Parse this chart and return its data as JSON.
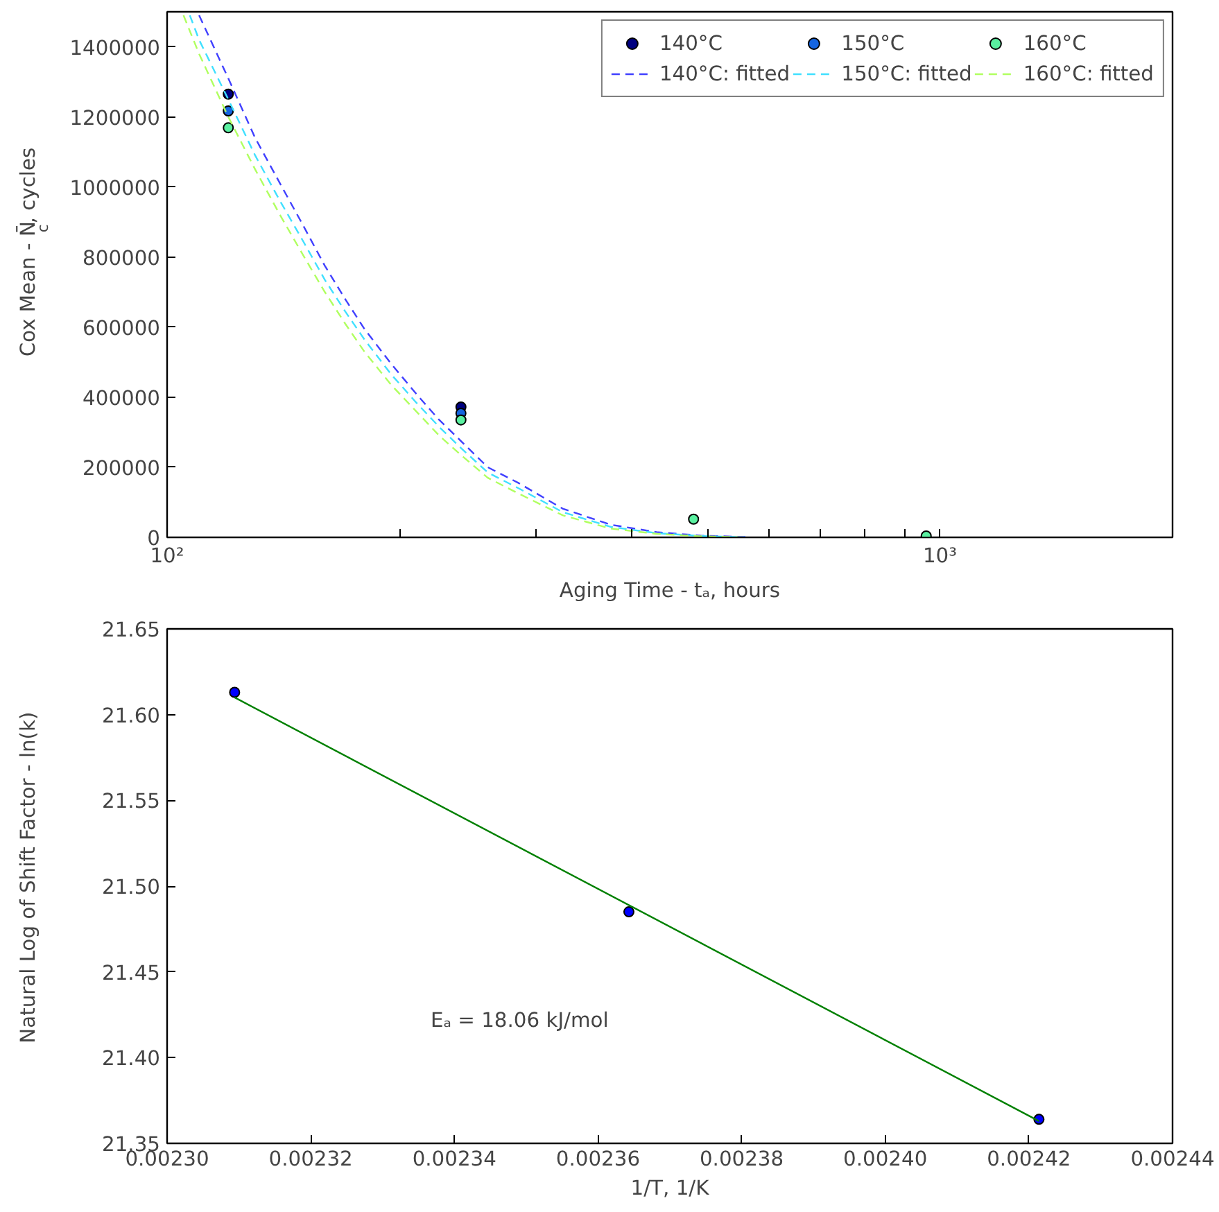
{
  "chart_data": [
    {
      "type": "scatter",
      "xlabel": "Aging Time - tₐ, hours",
      "ylabel": "Cox Mean - N̄$_{c}$, cycles",
      "log": "x",
      "legend": "top right",
      "marker": "circle",
      "grid": false,
      "xlim": [
        100,
        2000
      ],
      "xticks": [
        {
          "value": 100,
          "label": "10²"
        },
        {
          "value": 200,
          "label": null
        },
        {
          "value": 300,
          "label": null
        },
        {
          "value": 400,
          "label": null
        },
        {
          "value": 500,
          "label": null
        },
        {
          "value": 600,
          "label": null
        },
        {
          "value": 700,
          "label": null
        },
        {
          "value": 800,
          "label": null
        },
        {
          "value": 900,
          "label": null
        },
        {
          "value": 1000,
          "label": "10³"
        },
        {
          "value": 2000,
          "label": null
        }
      ],
      "ylim": [
        0,
        1500000
      ],
      "yticks": [
        0,
        200000,
        400000,
        600000,
        800000,
        1000000,
        1200000,
        1400000
      ],
      "series": [
        {
          "name": "140°C",
          "color": "#000080",
          "x": [
            120,
            240
          ],
          "values": [
            1265000,
            372000
          ]
        },
        {
          "name": "150°C",
          "color": "#1565e0",
          "x": [
            120,
            240
          ],
          "values": [
            1217000,
            354000
          ]
        },
        {
          "name": "160°C",
          "color": "#5af0a0",
          "x": [
            120,
            240,
            480,
            960
          ],
          "values": [
            1169000,
            335000,
            52000,
            4000
          ]
        },
        {
          "name": "140°C: fitted",
          "type": "line",
          "line_style": "dashed",
          "marker": "none",
          "color": "#4040ff",
          "x": [
            110,
            120,
            130,
            140,
            150,
            160,
            170,
            180,
            195,
            210,
            225,
            240,
            260,
            285,
            325,
            375,
            430,
            490,
            560
          ],
          "values": [
            1490000,
            1310000,
            1140000,
            1010000,
            890000,
            775000,
            680000,
            595000,
            495000,
            410000,
            335000,
            275000,
            200000,
            155000,
            82000,
            36000,
            15000,
            5000,
            1000
          ]
        },
        {
          "name": "150°C: fitted",
          "type": "line",
          "line_style": "dashed",
          "marker": "none",
          "color": "#40e0ff",
          "x": [
            107,
            110,
            120,
            130,
            140,
            150,
            160,
            170,
            180,
            195,
            210,
            225,
            240,
            260,
            285,
            325,
            375,
            430,
            490,
            560
          ],
          "values": [
            1490000,
            1420000,
            1250000,
            1090000,
            960000,
            845000,
            735000,
            645000,
            565000,
            465000,
            385000,
            315000,
            255000,
            185000,
            140000,
            72000,
            30000,
            12000,
            4000,
            0
          ]
        },
        {
          "name": "160°C: fitted",
          "type": "line",
          "line_style": "dashed",
          "marker": "none",
          "color": "#b0ff60",
          "x": [
            105,
            110,
            120,
            130,
            140,
            150,
            160,
            170,
            180,
            195,
            210,
            225,
            240,
            260,
            285,
            325,
            375,
            430,
            490,
            560
          ],
          "values": [
            1490000,
            1380000,
            1200000,
            1050000,
            920000,
            805000,
            700000,
            610000,
            530000,
            435000,
            360000,
            290000,
            235000,
            170000,
            125000,
            63000,
            25000,
            10000,
            3000,
            0
          ]
        }
      ]
    },
    {
      "type": "scatter",
      "xlabel": "1/T, 1/K",
      "ylabel": "Natural Log of Shift Factor - ln(k)",
      "marker": "circle",
      "grid": false,
      "annotations": [
        "Eₐ = 18.06 kJ/mol"
      ],
      "xlim": [
        0.0023,
        0.00244
      ],
      "xticks": [
        {
          "value": 0.0023,
          "label": "0.00230"
        },
        {
          "value": 0.00232,
          "label": "0.00232"
        },
        {
          "value": 0.00234,
          "label": "0.00234"
        },
        {
          "value": 0.00236,
          "label": "0.00236"
        },
        {
          "value": 0.00238,
          "label": "0.00238"
        },
        {
          "value": 0.0024,
          "label": "0.00240"
        },
        {
          "value": 0.00242,
          "label": "0.00242"
        },
        {
          "value": 0.00244,
          "label": "0.00244"
        }
      ],
      "ylim": [
        21.35,
        21.65
      ],
      "yticks": [
        {
          "value": 21.35,
          "label": "21.35"
        },
        {
          "value": 21.4,
          "label": "21.40"
        },
        {
          "value": 21.45,
          "label": "21.45"
        },
        {
          "value": 21.5,
          "label": "21.50"
        },
        {
          "value": 21.55,
          "label": "21.55"
        },
        {
          "value": 21.6,
          "label": "21.60"
        },
        {
          "value": 21.65,
          "label": "21.65"
        }
      ],
      "series": [
        {
          "color": "#0000ff",
          "x": [
            0.0023094,
            0.0023643,
            0.0024214
          ],
          "values": [
            21.613,
            21.485,
            21.364
          ]
        },
        {
          "type": "line",
          "marker": "none",
          "line_style": "solid",
          "color": "#008000",
          "x": [
            0.0023094,
            0.0024214
          ],
          "values": [
            21.61,
            21.363
          ]
        }
      ]
    }
  ]
}
